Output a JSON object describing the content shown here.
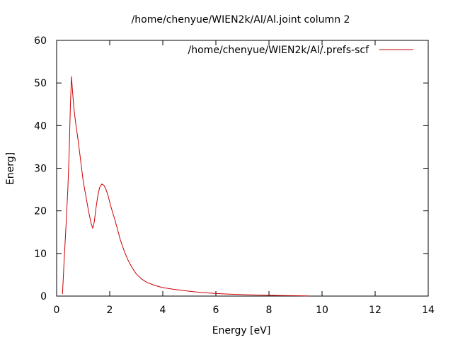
{
  "chart_data": {
    "type": "line",
    "title": "/home/chenyue/WIEN2k/Al/Al.joint column 2",
    "xlabel": "Energy [eV]",
    "ylabel": "Energ]",
    "xlim": [
      0,
      14
    ],
    "ylim": [
      0,
      60
    ],
    "xticks": [
      "0",
      "2",
      "4",
      "6",
      "8",
      "10",
      "12",
      "14"
    ],
    "yticks": [
      "0",
      "10",
      "20",
      "30",
      "40",
      "50",
      "60"
    ],
    "grid": false,
    "legend_position": "top-right",
    "series": [
      {
        "name": "/home/chenyue/WIEN2k/Al/.prefs-scf",
        "color": "#cc0000",
        "x": [
          0.22,
          0.28,
          0.35,
          0.42,
          0.47,
          0.52,
          0.56,
          0.6,
          0.65,
          0.72,
          0.8,
          0.9,
          1.0,
          1.1,
          1.2,
          1.3,
          1.36,
          1.42,
          1.48,
          1.55,
          1.62,
          1.7,
          1.78,
          1.86,
          1.94,
          2.02,
          2.1,
          2.2,
          2.3,
          2.4,
          2.55,
          2.7,
          2.85,
          3.0,
          3.2,
          3.4,
          3.7,
          4.0,
          4.4,
          4.8,
          5.2,
          5.6,
          6.0,
          6.5,
          7.0,
          7.5,
          8.0,
          8.5,
          9.0,
          9.5
        ],
        "y": [
          0.5,
          8,
          16,
          25,
          33,
          45,
          51.5,
          48,
          44,
          40.5,
          37,
          32,
          27,
          23.5,
          20,
          17,
          15.9,
          17.5,
          20.5,
          23.5,
          25.5,
          26.3,
          26.0,
          25.0,
          23.5,
          21.5,
          19.8,
          17.8,
          15.5,
          13.2,
          10.5,
          8.3,
          6.6,
          5.2,
          4.0,
          3.2,
          2.5,
          2.0,
          1.6,
          1.3,
          1.0,
          0.8,
          0.6,
          0.45,
          0.35,
          0.25,
          0.18,
          0.12,
          0.08,
          0.05
        ]
      }
    ]
  }
}
